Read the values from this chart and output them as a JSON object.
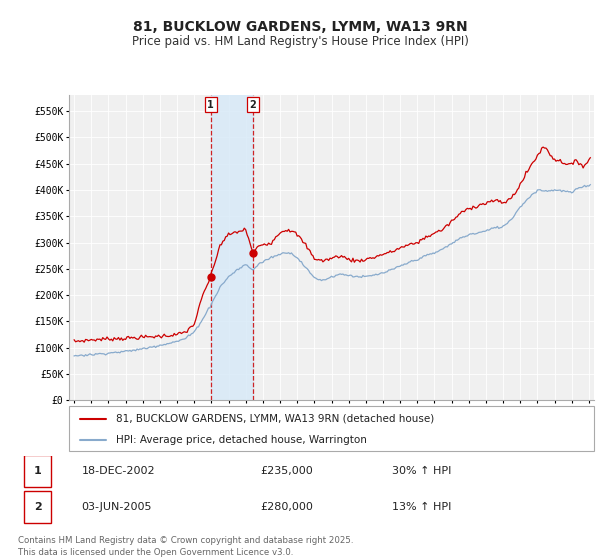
{
  "title": "81, BUCKLOW GARDENS, LYMM, WA13 9RN",
  "subtitle": "Price paid vs. HM Land Registry's House Price Index (HPI)",
  "ylim": [
    0,
    580000
  ],
  "yticks": [
    0,
    50000,
    100000,
    150000,
    200000,
    250000,
    300000,
    350000,
    400000,
    450000,
    500000,
    550000
  ],
  "ytick_labels": [
    "£0",
    "£50K",
    "£100K",
    "£150K",
    "£200K",
    "£250K",
    "£300K",
    "£350K",
    "£400K",
    "£450K",
    "£500K",
    "£550K"
  ],
  "xlim_start": 1994.7,
  "xlim_end": 2025.3,
  "xticks": [
    1995,
    1996,
    1997,
    1998,
    1999,
    2000,
    2001,
    2002,
    2003,
    2004,
    2005,
    2006,
    2007,
    2008,
    2009,
    2010,
    2011,
    2012,
    2013,
    2014,
    2015,
    2016,
    2017,
    2018,
    2019,
    2020,
    2021,
    2022,
    2023,
    2024,
    2025
  ],
  "purchase1": {
    "date_num": 2002.96,
    "price": 235000,
    "label": "1",
    "date_str": "18-DEC-2002",
    "hpi_pct": "30% ↑ HPI"
  },
  "purchase2": {
    "date_num": 2005.42,
    "price": 280000,
    "label": "2",
    "date_str": "03-JUN-2005",
    "hpi_pct": "13% ↑ HPI"
  },
  "red_line_color": "#cc0000",
  "blue_line_color": "#88aacc",
  "vline_color": "#cc0000",
  "shade_color": "#d8eaf8",
  "legend_label_red": "81, BUCKLOW GARDENS, LYMM, WA13 9RN (detached house)",
  "legend_label_blue": "HPI: Average price, detached house, Warrington",
  "footer": "Contains HM Land Registry data © Crown copyright and database right 2025.\nThis data is licensed under the Open Government Licence v3.0.",
  "chart_bg": "#f0f0f0",
  "grid_color": "#ffffff",
  "title_fontsize": 10,
  "subtitle_fontsize": 8.5,
  "tick_fontsize": 7,
  "legend_fontsize": 7.5,
  "red_anchors_x": [
    1995.0,
    1996.0,
    1997.0,
    1998.0,
    1999.0,
    2000.0,
    2001.0,
    2001.5,
    2002.0,
    2002.5,
    2002.96,
    2003.5,
    2004.0,
    2004.5,
    2005.0,
    2005.42,
    2005.8,
    2006.5,
    2007.0,
    2007.5,
    2008.0,
    2008.5,
    2009.0,
    2009.5,
    2010.0,
    2010.5,
    2011.0,
    2011.5,
    2012.0,
    2012.5,
    2013.0,
    2013.5,
    2014.0,
    2014.5,
    2015.0,
    2015.5,
    2016.0,
    2016.5,
    2017.0,
    2017.5,
    2018.0,
    2018.5,
    2019.0,
    2019.5,
    2020.0,
    2020.5,
    2021.0,
    2021.5,
    2022.0,
    2022.3,
    2022.5,
    2022.8,
    2023.0,
    2023.3,
    2023.7,
    2024.0,
    2024.3,
    2024.7,
    2025.1
  ],
  "red_anchors_y": [
    112000,
    115000,
    117000,
    118000,
    120000,
    122000,
    125000,
    130000,
    145000,
    200000,
    235000,
    295000,
    315000,
    320000,
    325000,
    280000,
    295000,
    300000,
    320000,
    325000,
    315000,
    295000,
    270000,
    265000,
    270000,
    275000,
    268000,
    265000,
    268000,
    272000,
    278000,
    282000,
    290000,
    295000,
    300000,
    310000,
    318000,
    325000,
    340000,
    355000,
    365000,
    370000,
    375000,
    380000,
    375000,
    385000,
    410000,
    440000,
    465000,
    480000,
    480000,
    465000,
    458000,
    455000,
    450000,
    448000,
    455000,
    445000,
    460000
  ],
  "blue_anchors_x": [
    1995.0,
    1996.0,
    1997.0,
    1998.0,
    1999.0,
    2000.0,
    2001.0,
    2001.5,
    2002.0,
    2002.5,
    2002.96,
    2003.5,
    2004.0,
    2004.5,
    2005.0,
    2005.42,
    2005.8,
    2006.5,
    2007.0,
    2007.5,
    2008.0,
    2008.5,
    2009.0,
    2009.5,
    2010.0,
    2010.5,
    2011.0,
    2011.5,
    2012.0,
    2012.5,
    2013.0,
    2013.5,
    2014.0,
    2014.5,
    2015.0,
    2015.5,
    2016.0,
    2016.5,
    2017.0,
    2017.5,
    2018.0,
    2018.5,
    2019.0,
    2019.5,
    2020.0,
    2020.5,
    2021.0,
    2021.5,
    2022.0,
    2022.5,
    2023.0,
    2023.5,
    2024.0,
    2024.5,
    2025.1
  ],
  "blue_anchors_y": [
    85000,
    87000,
    90000,
    93000,
    98000,
    105000,
    112000,
    118000,
    130000,
    155000,
    181000,
    215000,
    235000,
    248000,
    258000,
    248000,
    260000,
    272000,
    278000,
    282000,
    272000,
    252000,
    233000,
    228000,
    235000,
    240000,
    238000,
    235000,
    235000,
    238000,
    242000,
    248000,
    255000,
    262000,
    268000,
    275000,
    280000,
    288000,
    298000,
    308000,
    315000,
    318000,
    322000,
    328000,
    330000,
    345000,
    368000,
    385000,
    400000,
    398000,
    400000,
    398000,
    395000,
    405000,
    410000
  ]
}
